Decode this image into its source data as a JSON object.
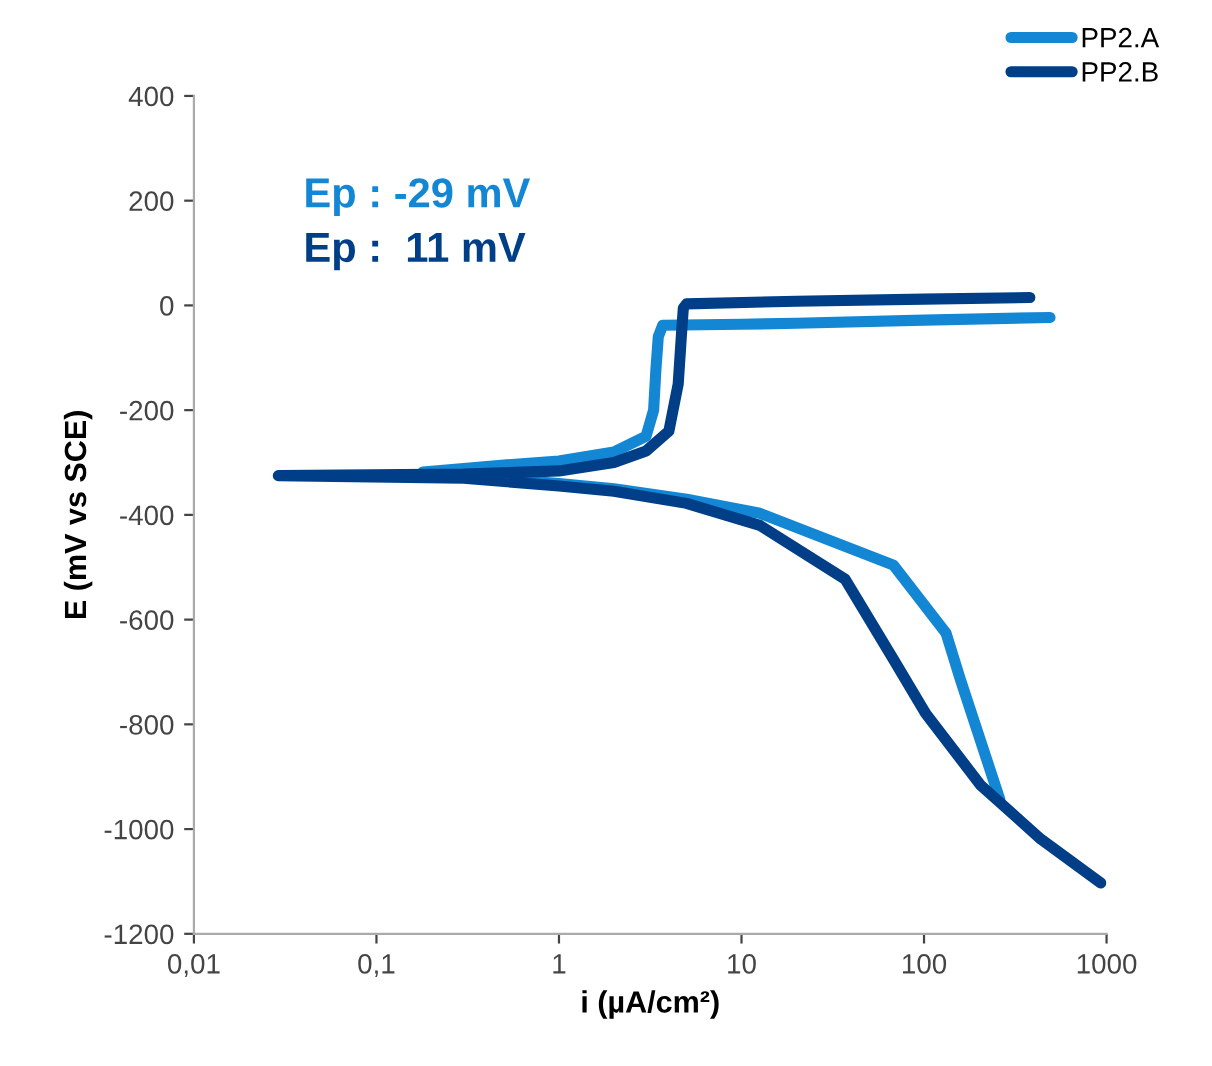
{
  "chart_data": {
    "type": "line",
    "xlabel": "i (µA/cm²)",
    "ylabel": "E (mV vs SCE)",
    "log": "x",
    "xlim": [
      0.01,
      1000
    ],
    "xticks": [
      {
        "value": 0.01,
        "label": "0,01"
      },
      {
        "value": 0.1,
        "label": "0,1"
      },
      1,
      10,
      100,
      1000
    ],
    "ylim": [
      -1200,
      400
    ],
    "yticks": [
      -1200,
      -1000,
      -800,
      -600,
      -400,
      -200,
      0,
      200,
      400
    ],
    "grid": false,
    "legend": "top right",
    "marker": "none",
    "line_style": "solid",
    "annotations": [
      "Ep : -29 mV",
      "Ep :  11 mV"
    ],
    "series": [
      {
        "name": "PP2.A",
        "color": "#1487d4",
        "x": [
          260,
          158,
          132,
          68,
          12.6,
          5,
          2,
          1,
          0.5,
          0.18,
          0.5,
          1,
          2,
          3,
          3.3,
          3.4,
          3.5,
          3.7,
          10,
          20,
          100,
          490
        ],
        "values": [
          -943,
          -714,
          -626,
          -496,
          -397,
          -370,
          -350,
          -340,
          -332,
          -318,
          -305,
          -297,
          -280,
          -250,
          -200,
          -120,
          -60,
          -38,
          -36,
          -34,
          -28,
          -23
        ]
      },
      {
        "name": "PP2.B",
        "color": "#003f87",
        "x": [
          930,
          436,
          204,
          102,
          68,
          37,
          12.6,
          5,
          2,
          1,
          0.3,
          0.029,
          0.3,
          1,
          2,
          3,
          4,
          4.5,
          4.7,
          4.8,
          5,
          20,
          100,
          380
        ],
        "values": [
          -1103,
          -1019,
          -916,
          -779,
          -676,
          -523,
          -420,
          -378,
          -355,
          -345,
          -330,
          -325,
          -322,
          -316,
          -300,
          -278,
          -240,
          -150,
          -50,
          -5,
          3,
          8,
          12,
          15
        ]
      }
    ]
  }
}
